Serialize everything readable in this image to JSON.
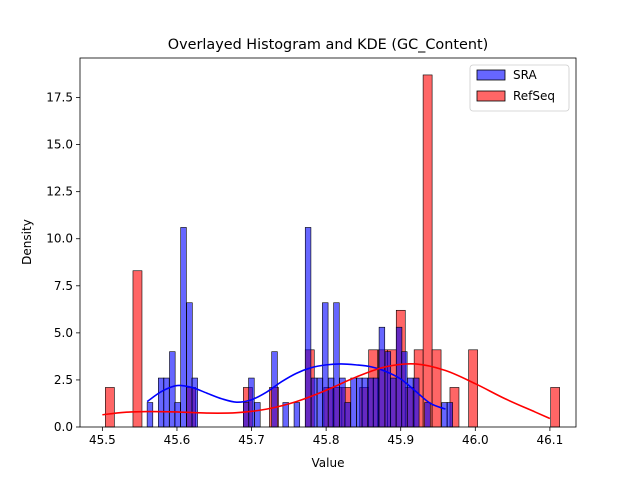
{
  "chart_data": {
    "type": "bar",
    "title": "Overlayed Histogram and KDE (GC_Content)",
    "xlabel": "Value",
    "ylabel": "Density",
    "xlim": [
      45.47,
      46.135
    ],
    "ylim": [
      0,
      19.6
    ],
    "xticks": [
      "45.5",
      "45.6",
      "45.7",
      "45.8",
      "45.9",
      "46.0",
      "46.1"
    ],
    "yticks": [
      "0.0",
      "2.5",
      "5.0",
      "7.5",
      "10.0",
      "12.5",
      "15.0",
      "17.5"
    ],
    "legend_position": "top-right",
    "grid": false,
    "series": [
      {
        "name": "SRA",
        "color": "#0000ff",
        "bin_width": 0.0076,
        "bins": [
          {
            "x": 45.56,
            "density": 1.3
          },
          {
            "x": 45.575,
            "density": 2.6
          },
          {
            "x": 45.582,
            "density": 2.6
          },
          {
            "x": 45.59,
            "density": 4.0
          },
          {
            "x": 45.597,
            "density": 1.3
          },
          {
            "x": 45.605,
            "density": 10.6
          },
          {
            "x": 45.613,
            "density": 6.6
          },
          {
            "x": 45.62,
            "density": 2.6
          },
          {
            "x": 45.689,
            "density": 1.3
          },
          {
            "x": 45.696,
            "density": 2.6
          },
          {
            "x": 45.704,
            "density": 1.3
          },
          {
            "x": 45.727,
            "density": 4.0
          },
          {
            "x": 45.742,
            "density": 1.3
          },
          {
            "x": 45.757,
            "density": 1.3
          },
          {
            "x": 45.772,
            "density": 10.6
          },
          {
            "x": 45.78,
            "density": 2.6
          },
          {
            "x": 45.788,
            "density": 2.6
          },
          {
            "x": 45.795,
            "density": 6.6
          },
          {
            "x": 45.803,
            "density": 2.6
          },
          {
            "x": 45.81,
            "density": 6.6
          },
          {
            "x": 45.818,
            "density": 2.6
          },
          {
            "x": 45.825,
            "density": 1.3
          },
          {
            "x": 45.833,
            "density": 2.6
          },
          {
            "x": 45.841,
            "density": 2.6
          },
          {
            "x": 45.848,
            "density": 2.6
          },
          {
            "x": 45.856,
            "density": 2.6
          },
          {
            "x": 45.863,
            "density": 2.6
          },
          {
            "x": 45.871,
            "density": 5.3
          },
          {
            "x": 45.879,
            "density": 4.0
          },
          {
            "x": 45.886,
            "density": 2.6
          },
          {
            "x": 45.894,
            "density": 5.3
          },
          {
            "x": 45.901,
            "density": 4.0
          },
          {
            "x": 45.909,
            "density": 2.6
          },
          {
            "x": 45.917,
            "density": 2.6
          },
          {
            "x": 45.932,
            "density": 1.3
          },
          {
            "x": 45.955,
            "density": 1.3
          },
          {
            "x": 45.962,
            "density": 1.3
          }
        ],
        "kde": [
          [
            45.56,
            1.35
          ],
          [
            45.58,
            1.9
          ],
          [
            45.6,
            2.2
          ],
          [
            45.62,
            2.1
          ],
          [
            45.64,
            1.8
          ],
          [
            45.66,
            1.5
          ],
          [
            45.68,
            1.32
          ],
          [
            45.7,
            1.45
          ],
          [
            45.72,
            1.85
          ],
          [
            45.74,
            2.4
          ],
          [
            45.76,
            2.85
          ],
          [
            45.78,
            3.15
          ],
          [
            45.8,
            3.3
          ],
          [
            45.82,
            3.35
          ],
          [
            45.84,
            3.3
          ],
          [
            45.86,
            3.2
          ],
          [
            45.88,
            2.95
          ],
          [
            45.9,
            2.55
          ],
          [
            45.92,
            1.9
          ],
          [
            45.94,
            1.25
          ],
          [
            45.96,
            0.95
          ]
        ]
      },
      {
        "name": "RefSeq",
        "color": "#ff0000",
        "bin_width": 0.0121,
        "bins": [
          {
            "x": 45.504,
            "density": 2.1
          },
          {
            "x": 45.541,
            "density": 8.3
          },
          {
            "x": 45.613,
            "density": 2.1
          },
          {
            "x": 45.689,
            "density": 2.1
          },
          {
            "x": 45.724,
            "density": 2.1
          },
          {
            "x": 45.772,
            "density": 4.1
          },
          {
            "x": 45.797,
            "density": 2.1
          },
          {
            "x": 45.809,
            "density": 2.1
          },
          {
            "x": 45.821,
            "density": 2.1
          },
          {
            "x": 45.845,
            "density": 2.1
          },
          {
            "x": 45.857,
            "density": 4.1
          },
          {
            "x": 45.87,
            "density": 4.1
          },
          {
            "x": 45.882,
            "density": 4.1
          },
          {
            "x": 45.894,
            "density": 6.2
          },
          {
            "x": 45.906,
            "density": 2.1
          },
          {
            "x": 45.918,
            "density": 4.1
          },
          {
            "x": 45.93,
            "density": 18.7
          },
          {
            "x": 45.942,
            "density": 4.1
          },
          {
            "x": 45.966,
            "density": 2.1
          },
          {
            "x": 45.991,
            "density": 4.1
          },
          {
            "x": 46.101,
            "density": 2.1
          }
        ],
        "kde": [
          [
            45.5,
            0.65
          ],
          [
            45.53,
            0.78
          ],
          [
            45.56,
            0.82
          ],
          [
            45.6,
            0.8
          ],
          [
            45.64,
            0.74
          ],
          [
            45.68,
            0.76
          ],
          [
            45.72,
            0.95
          ],
          [
            45.76,
            1.35
          ],
          [
            45.8,
            1.95
          ],
          [
            45.84,
            2.65
          ],
          [
            45.88,
            3.2
          ],
          [
            45.92,
            3.35
          ],
          [
            45.96,
            3.0
          ],
          [
            46.0,
            2.3
          ],
          [
            46.04,
            1.5
          ],
          [
            46.08,
            0.8
          ],
          [
            46.1,
            0.45
          ]
        ]
      }
    ]
  }
}
